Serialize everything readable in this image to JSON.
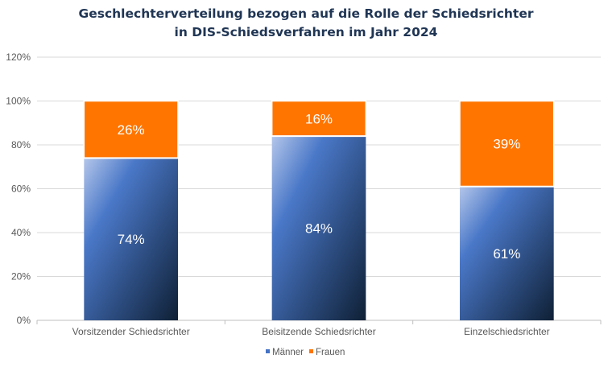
{
  "chart_data": {
    "type": "bar",
    "stacked": true,
    "title_lines": [
      "Geschlechterverteilung bezogen auf die Rolle der Schiedsrichter",
      "in DIS-Schiedsverfahren im Jahr 2024"
    ],
    "categories": [
      "Vorsitzender Schiedsrichter",
      "Beisitzende Schiedsrichter",
      "Einzelschiedsrichter"
    ],
    "series": [
      {
        "name": "Männer",
        "values": [
          74,
          84,
          61
        ],
        "labels": [
          "74%",
          "84%",
          "61%"
        ],
        "color": "#4472c4"
      },
      {
        "name": "Frauen",
        "values": [
          26,
          16,
          39
        ],
        "labels": [
          "26%",
          "16%",
          "39%"
        ],
        "color": "#ff7500"
      }
    ],
    "ylim": [
      0,
      120
    ],
    "y_ticks": [
      0,
      20,
      40,
      60,
      80,
      100,
      120
    ],
    "y_tick_labels": [
      "0%",
      "20%",
      "40%",
      "60%",
      "80%",
      "100%",
      "120%"
    ],
    "grid": true,
    "legend_position": "bottom"
  }
}
